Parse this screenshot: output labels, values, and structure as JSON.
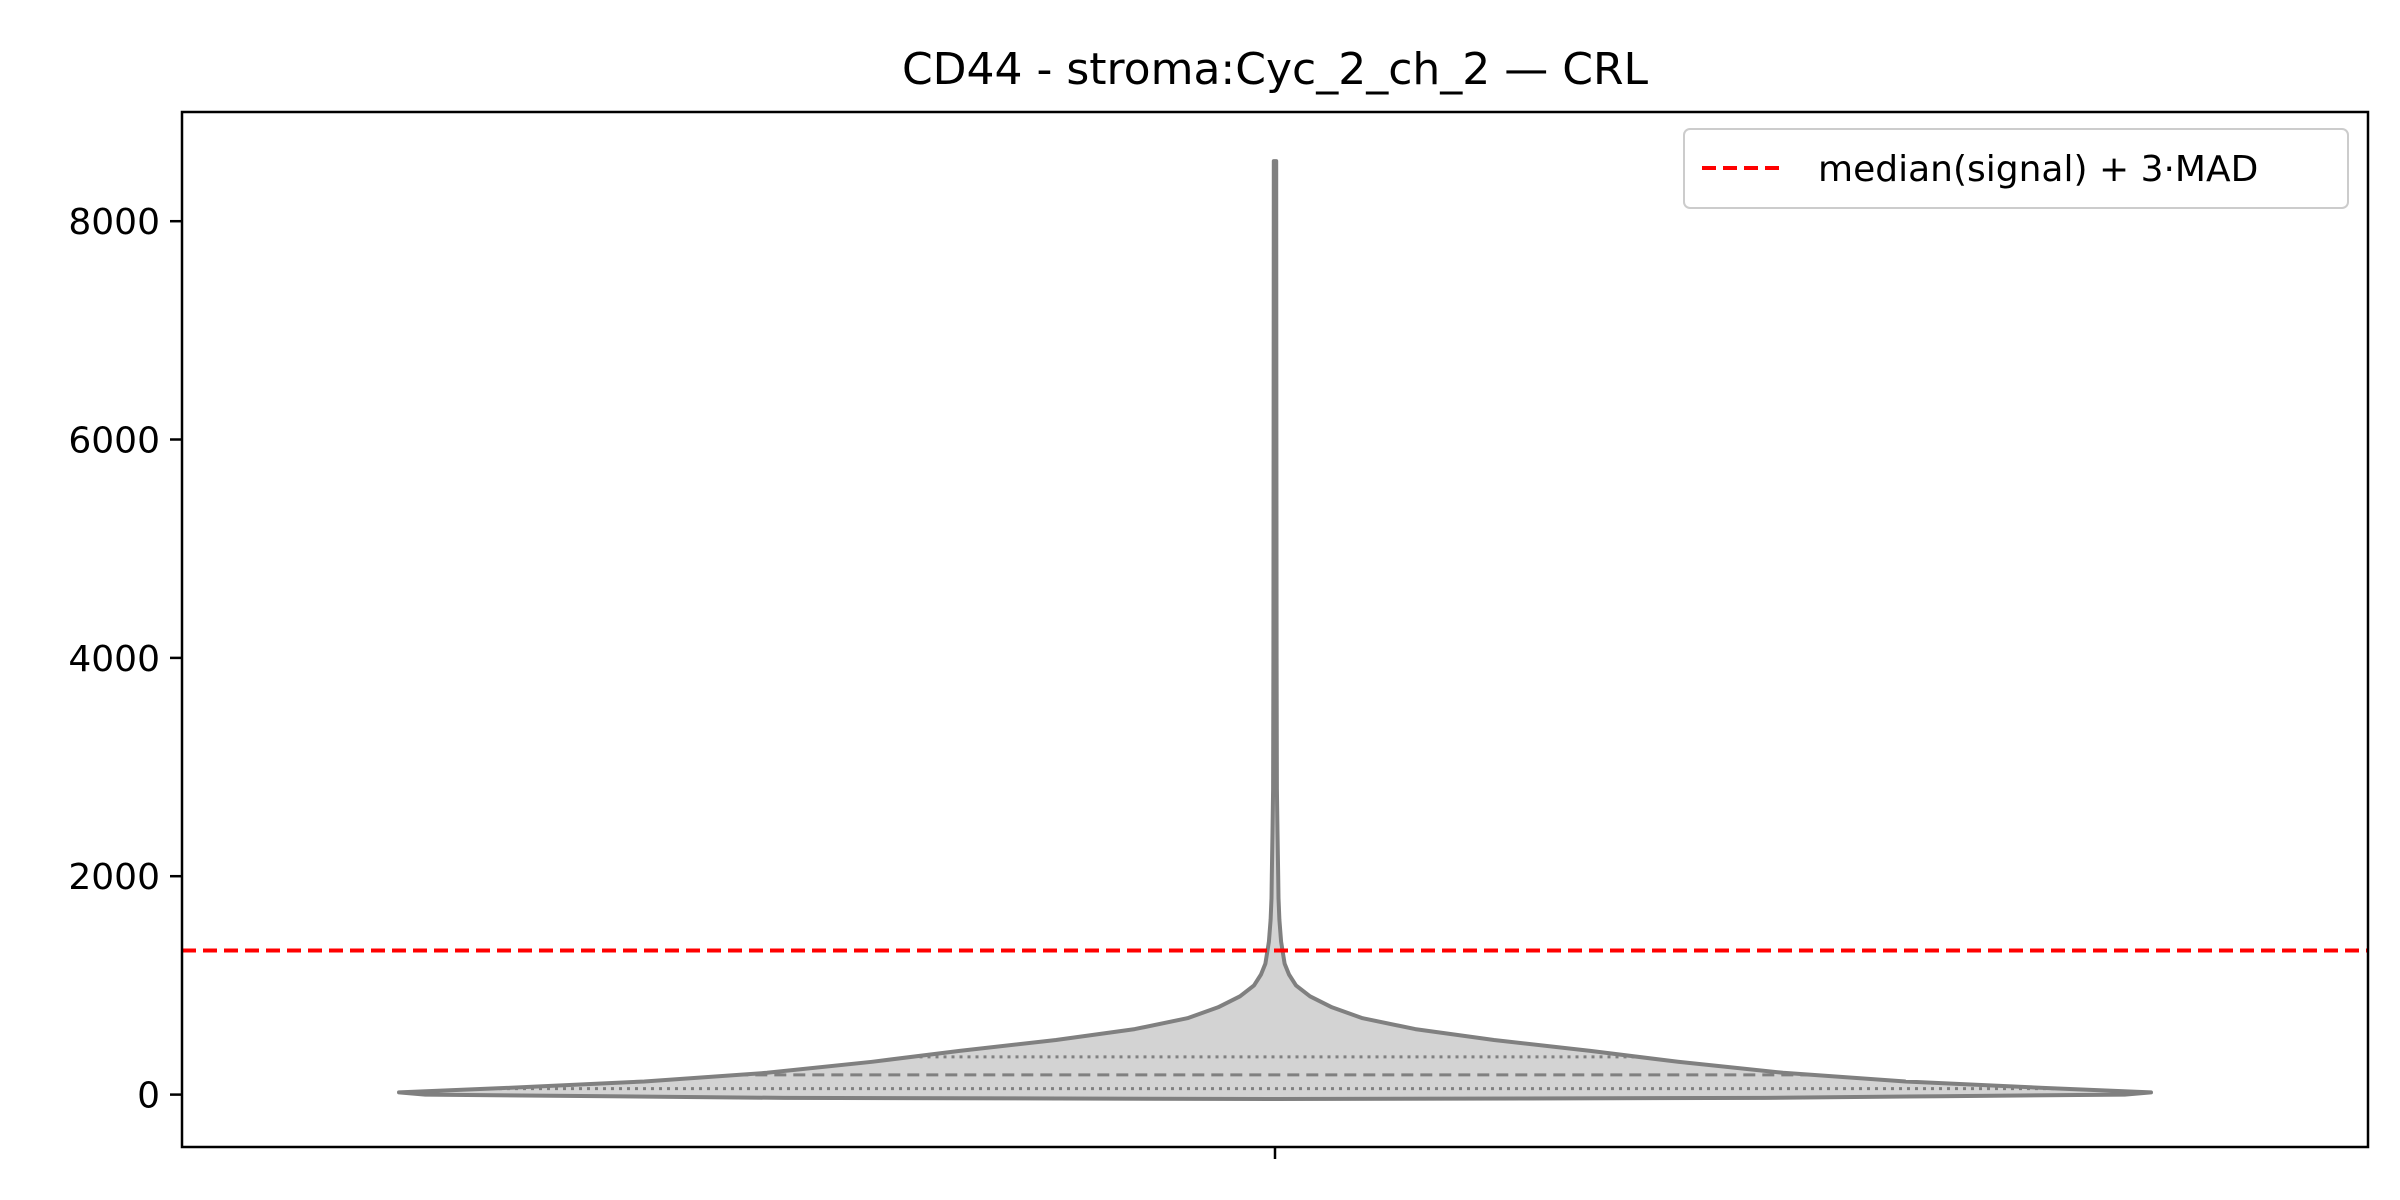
{
  "chart_data": {
    "type": "violin",
    "title": "CD44 - stroma:Cyc_2_ch_2 — CRL",
    "xlabel": "",
    "ylabel": "",
    "yticks": [
      0,
      2000,
      4000,
      6000,
      8000
    ],
    "ytick_labels": [
      "0",
      "2000",
      "4000",
      "6000",
      "8000"
    ],
    "ylim": [
      -480,
      9000
    ],
    "grid": false,
    "legend_position": "upper right",
    "colors": {
      "violin_fill": "#d3d3d3",
      "violin_edge": "#808080",
      "threshold": "#ff0000"
    },
    "violin": {
      "min": -40,
      "max": 8550,
      "quartiles": [
        55,
        180,
        345
      ],
      "density_profile": [
        [
          -40,
          0.0
        ],
        [
          -30,
          0.56
        ],
        [
          -15,
          0.76
        ],
        [
          0,
          0.97
        ],
        [
          20,
          1.0
        ],
        [
          60,
          0.88
        ],
        [
          120,
          0.72
        ],
        [
          200,
          0.58
        ],
        [
          300,
          0.46
        ],
        [
          400,
          0.36
        ],
        [
          500,
          0.25
        ],
        [
          600,
          0.16
        ],
        [
          700,
          0.1
        ],
        [
          800,
          0.065
        ],
        [
          900,
          0.04
        ],
        [
          1000,
          0.024
        ],
        [
          1100,
          0.016
        ],
        [
          1200,
          0.011
        ],
        [
          1400,
          0.007
        ],
        [
          1600,
          0.005
        ],
        [
          1800,
          0.004
        ],
        [
          2000,
          0.0036
        ],
        [
          2400,
          0.0028
        ],
        [
          2800,
          0.0022
        ],
        [
          4000,
          0.0018
        ],
        [
          6000,
          0.0016
        ],
        [
          8550,
          0.0014
        ]
      ]
    },
    "threshold": {
      "label": "median(signal) + 3·MAD",
      "value": 1320
    }
  }
}
